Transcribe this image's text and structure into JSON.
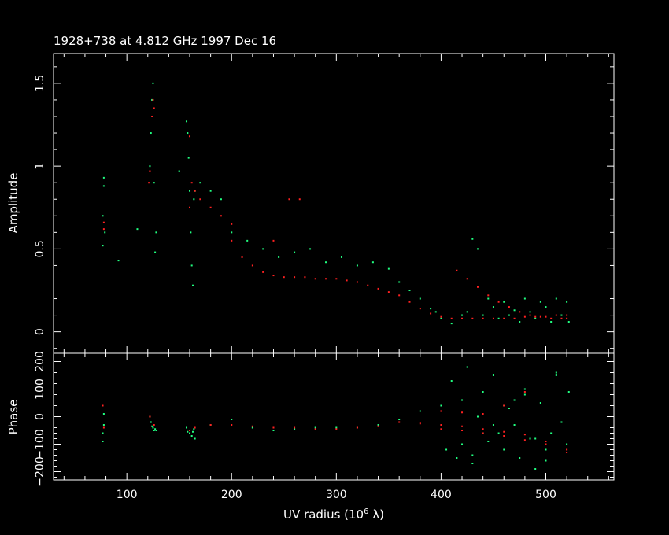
{
  "chart_data": [
    {
      "type": "scatter",
      "title": "1928+738 at 4.812 GHz 1997 Dec 16",
      "ylabel": "Amplitude",
      "xlabel": "",
      "xlim": [
        30,
        565
      ],
      "ylim": [
        -0.13,
        1.68
      ],
      "xticks": [
        100,
        200,
        300,
        400,
        500
      ],
      "yticks": [
        0,
        0.5,
        1,
        1.5
      ],
      "ytick_labels": [
        "0",
        "0.5",
        "1",
        "1.5"
      ],
      "grid": false,
      "colors": {
        "series_a": "#ff2020",
        "series_b": "#20ff80",
        "axes": "#ffffff",
        "background": "#000000"
      },
      "series": [
        {
          "color": "#20ff80",
          "x": [
            77,
            77,
            78,
            78,
            79,
            92,
            110,
            122,
            123,
            124,
            125,
            126,
            127,
            128,
            150,
            157,
            158,
            159,
            160,
            161,
            162,
            163,
            164,
            165,
            170,
            180,
            190,
            200,
            215,
            230,
            245,
            260,
            275,
            290,
            305,
            320,
            335,
            350,
            360,
            370,
            380,
            390,
            395,
            400,
            410,
            420,
            425,
            430,
            435,
            440,
            445,
            450,
            455,
            460,
            465,
            470,
            475,
            480,
            485,
            490,
            495,
            500,
            505,
            510,
            515,
            520,
            522
          ],
          "y": [
            0.52,
            0.7,
            0.88,
            0.93,
            0.6,
            0.43,
            0.62,
            1.0,
            1.2,
            1.4,
            1.5,
            0.9,
            0.48,
            0.6,
            0.97,
            1.27,
            1.2,
            1.05,
            0.85,
            0.6,
            0.4,
            0.28,
            0.8,
            0.85,
            0.9,
            0.85,
            0.8,
            0.6,
            0.55,
            0.5,
            0.45,
            0.48,
            0.5,
            0.42,
            0.45,
            0.4,
            0.42,
            0.38,
            0.3,
            0.25,
            0.2,
            0.14,
            0.12,
            0.08,
            0.05,
            0.1,
            0.12,
            0.56,
            0.5,
            0.1,
            0.2,
            0.15,
            0.08,
            0.18,
            0.1,
            0.13,
            0.06,
            0.2,
            0.12,
            0.08,
            0.18,
            0.15,
            0.06,
            0.2,
            0.1,
            0.18,
            0.06
          ]
        },
        {
          "color": "#ff2020",
          "x": [
            78,
            78,
            121,
            122,
            124,
            125,
            126,
            160,
            162,
            165,
            170,
            180,
            190,
            200,
            210,
            220,
            230,
            240,
            250,
            260,
            270,
            280,
            290,
            300,
            310,
            320,
            330,
            340,
            350,
            360,
            370,
            380,
            390,
            400,
            410,
            420,
            430,
            440,
            450,
            460,
            470,
            480,
            490,
            500,
            510,
            520,
            415,
            425,
            435,
            445,
            455,
            465,
            475,
            485,
            495,
            505,
            515,
            520,
            160,
            200,
            240,
            255,
            265
          ],
          "y": [
            0.62,
            0.66,
            0.9,
            0.97,
            1.3,
            1.4,
            1.35,
            1.18,
            0.9,
            0.85,
            0.8,
            0.75,
            0.7,
            0.55,
            0.45,
            0.4,
            0.36,
            0.34,
            0.33,
            0.33,
            0.33,
            0.32,
            0.32,
            0.32,
            0.31,
            0.3,
            0.28,
            0.26,
            0.24,
            0.22,
            0.18,
            0.14,
            0.11,
            0.09,
            0.08,
            0.08,
            0.08,
            0.08,
            0.08,
            0.08,
            0.08,
            0.09,
            0.09,
            0.09,
            0.1,
            0.1,
            0.37,
            0.32,
            0.27,
            0.22,
            0.18,
            0.15,
            0.12,
            0.1,
            0.09,
            0.08,
            0.08,
            0.08,
            0.75,
            0.65,
            0.55,
            0.8,
            0.8
          ]
        }
      ]
    },
    {
      "type": "scatter",
      "title": "",
      "ylabel": "Phase",
      "xlabel": "UV radius  (10",
      "xlabel_sup": "6",
      "xlabel_tail": " λ)",
      "xlim": [
        30,
        565
      ],
      "ylim": [
        -230,
        230
      ],
      "xticks": [
        100,
        200,
        300,
        400,
        500
      ],
      "xtick_labels": [
        "100",
        "200",
        "300",
        "400",
        "500"
      ],
      "yticks": [
        -200,
        -100,
        0,
        100,
        200
      ],
      "ytick_labels": [
        "−200",
        "−100",
        "0",
        "100",
        "200"
      ],
      "grid": false,
      "series": [
        {
          "color": "#20ff80",
          "x": [
            77,
            77,
            78,
            78,
            122,
            123,
            124,
            125,
            126,
            127,
            128,
            157,
            158,
            160,
            162,
            163,
            164,
            165,
            180,
            200,
            220,
            240,
            260,
            280,
            300,
            320,
            340,
            360,
            380,
            400,
            405,
            410,
            415,
            420,
            425,
            430,
            435,
            440,
            445,
            450,
            455,
            460,
            465,
            470,
            475,
            480,
            485,
            490,
            495,
            500,
            505,
            510,
            515,
            520,
            522,
            420,
            430,
            440,
            450,
            460,
            470,
            480,
            490,
            500,
            510
          ],
          "y": [
            -90,
            -60,
            -30,
            10,
            0,
            -20,
            -35,
            -40,
            -50,
            -45,
            -50,
            -40,
            -55,
            -60,
            -70,
            -55,
            -45,
            -80,
            -30,
            -10,
            -40,
            -50,
            -45,
            -40,
            -40,
            -40,
            -30,
            -10,
            20,
            40,
            -120,
            130,
            -150,
            60,
            180,
            -170,
            0,
            90,
            -90,
            150,
            -60,
            -120,
            30,
            -30,
            -150,
            80,
            -80,
            -190,
            50,
            -120,
            -60,
            150,
            -20,
            -100,
            90,
            -100,
            -140,
            -60,
            -30,
            40,
            60,
            100,
            -80,
            -160,
            160
          ]
        },
        {
          "color": "#ff2020",
          "x": [
            77,
            78,
            122,
            126,
            160,
            165,
            180,
            200,
            220,
            240,
            260,
            280,
            300,
            320,
            340,
            360,
            380,
            400,
            420,
            440,
            460,
            480,
            500,
            520,
            400,
            420,
            440,
            460,
            480,
            400,
            420,
            440,
            460,
            480,
            500,
            520
          ],
          "y": [
            40,
            -40,
            0,
            -30,
            -50,
            -40,
            -30,
            -30,
            -35,
            -40,
            -40,
            -45,
            -45,
            -40,
            -35,
            -20,
            -25,
            -30,
            -35,
            -45,
            -55,
            -65,
            -90,
            -130,
            20,
            15,
            10,
            40,
            90,
            -45,
            -50,
            -60,
            -70,
            -85,
            -100,
            -120
          ]
        }
      ]
    }
  ]
}
